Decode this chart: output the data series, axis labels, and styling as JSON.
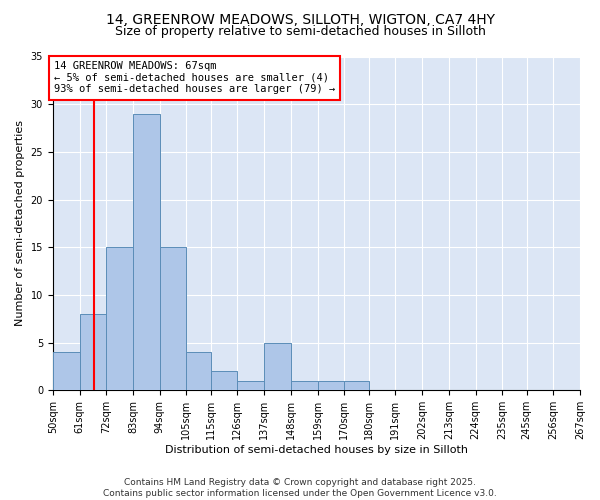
{
  "title_line1": "14, GREENROW MEADOWS, SILLOTH, WIGTON, CA7 4HY",
  "title_line2": "Size of property relative to semi-detached houses in Silloth",
  "xlabel": "Distribution of semi-detached houses by size in Silloth",
  "ylabel": "Number of semi-detached properties",
  "bin_edges": [
    50,
    61,
    72,
    83,
    94,
    105,
    115,
    126,
    137,
    148,
    159,
    170,
    180,
    191,
    202,
    213,
    224,
    235,
    245,
    256,
    267
  ],
  "bin_labels": [
    "50sqm",
    "61sqm",
    "72sqm",
    "83sqm",
    "94sqm",
    "105sqm",
    "115sqm",
    "126sqm",
    "137sqm",
    "148sqm",
    "159sqm",
    "170sqm",
    "180sqm",
    "191sqm",
    "202sqm",
    "213sqm",
    "224sqm",
    "235sqm",
    "245sqm",
    "256sqm",
    "267sqm"
  ],
  "counts": [
    4,
    8,
    15,
    29,
    15,
    4,
    2,
    1,
    5,
    1,
    1,
    1,
    0,
    0,
    0,
    0,
    0,
    0,
    0,
    0
  ],
  "bar_color": "#aec6e8",
  "bar_edge_color": "#5b8db8",
  "property_line_x": 67,
  "annotation_text": "14 GREENROW MEADOWS: 67sqm\n← 5% of semi-detached houses are smaller (4)\n93% of semi-detached houses are larger (79) →",
  "annotation_box_color": "white",
  "annotation_box_edge_color": "red",
  "vline_color": "red",
  "ylim": [
    0,
    35
  ],
  "yticks": [
    0,
    5,
    10,
    15,
    20,
    25,
    30,
    35
  ],
  "background_color": "#dce6f5",
  "footer_text": "Contains HM Land Registry data © Crown copyright and database right 2025.\nContains public sector information licensed under the Open Government Licence v3.0.",
  "title_fontsize": 10,
  "subtitle_fontsize": 9,
  "axis_label_fontsize": 8,
  "tick_fontsize": 7,
  "annotation_fontsize": 7.5,
  "footer_fontsize": 6.5
}
